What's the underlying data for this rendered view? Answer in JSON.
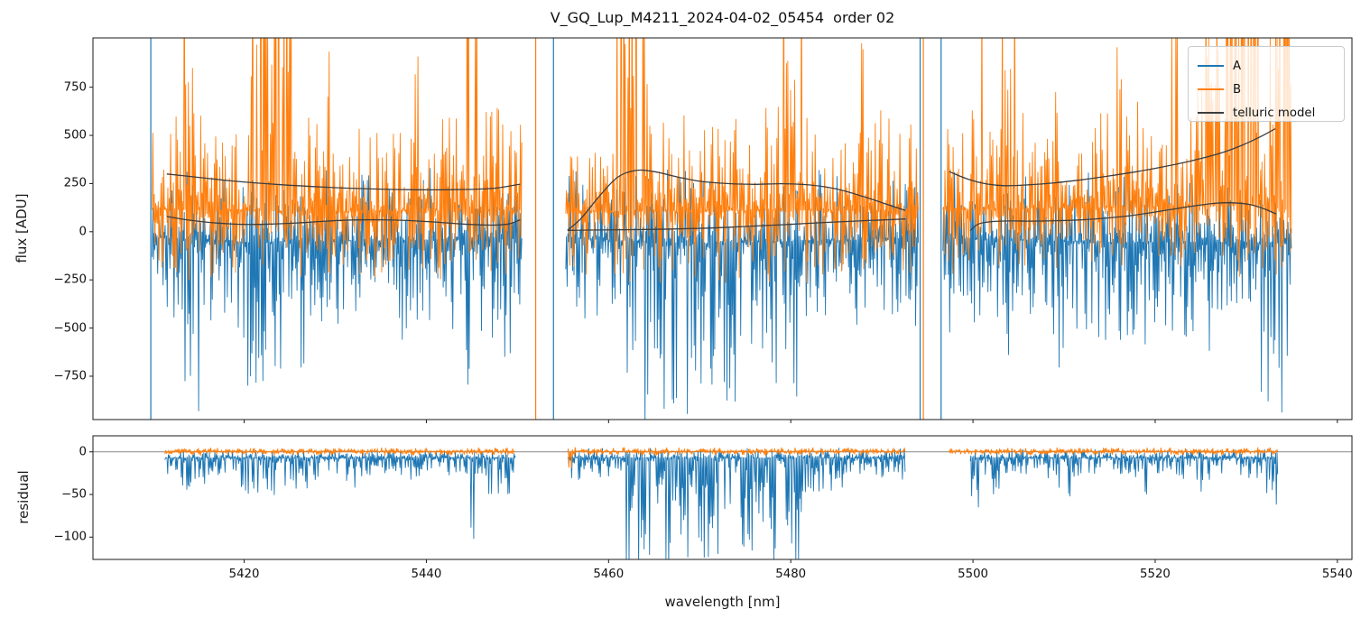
{
  "chart_data": {
    "type": "line",
    "title": "V_GQ_Lup_M4211_2024-04-02_05454  order 02",
    "panels": {
      "flux": {
        "ylabel": "flux [ADU]",
        "ylim": [
          -975,
          1006
        ],
        "yticks": [
          750,
          500,
          250,
          0,
          -250,
          -500,
          -750
        ],
        "xlim": [
          5403.4,
          5541.6
        ],
        "xticks": [
          5420,
          5440,
          5460,
          5480,
          5500,
          5520,
          5540
        ],
        "show_xticklabels": false
      },
      "residual": {
        "ylabel": "residual",
        "xlabel": "wavelength [nm]",
        "ylim": [
          -126.2,
          18.8
        ],
        "yticks": [
          0,
          -50,
          -100
        ],
        "xlim": [
          5403.4,
          5541.6
        ],
        "xticks": [
          5420,
          5440,
          5460,
          5480,
          5500,
          5520,
          5540
        ],
        "zero_line": true
      }
    },
    "legend": {
      "position": "upper right",
      "entries": [
        {
          "label": "A",
          "color": "#1f77b4"
        },
        {
          "label": "B",
          "color": "#ff7f0e"
        },
        {
          "label": "telluric model",
          "color": "#3d3d3d"
        }
      ]
    },
    "colors": {
      "A": "#1f77b4",
      "B": "#ff7f0e",
      "telluric": "#3d3d3d",
      "zero_line": "#888888",
      "spine": "#1a1a1a"
    },
    "segments": [
      {
        "x0": 5409.9,
        "x1": 5450.5
      },
      {
        "x0": 5455.3,
        "x1": 5494.0
      },
      {
        "x0": 5496.7,
        "x1": 5535.0
      }
    ],
    "telluric_model": {
      "upper": [
        [
          [
            5411.5,
            300
          ],
          [
            5415,
            282
          ],
          [
            5419,
            262
          ],
          [
            5424,
            244
          ],
          [
            5429,
            231
          ],
          [
            5434,
            222
          ],
          [
            5439,
            218
          ],
          [
            5444,
            219
          ],
          [
            5447.5,
            226
          ],
          [
            5450.3,
            247
          ]
        ],
        [
          [
            5455.5,
            8
          ],
          [
            5457,
            70
          ],
          [
            5459,
            185
          ],
          [
            5461,
            283
          ],
          [
            5463,
            318
          ],
          [
            5465,
            312
          ],
          [
            5467.5,
            285
          ],
          [
            5470,
            262
          ],
          [
            5473,
            250
          ],
          [
            5476,
            246
          ],
          [
            5479,
            249
          ],
          [
            5482,
            243
          ],
          [
            5485,
            222
          ],
          [
            5488,
            182
          ],
          [
            5490.5,
            143
          ],
          [
            5492.6,
            110
          ]
        ],
        [
          [
            5497.4,
            312
          ],
          [
            5499.5,
            272
          ],
          [
            5501.5,
            248
          ],
          [
            5503.5,
            239
          ],
          [
            5506,
            243
          ],
          [
            5509,
            254
          ],
          [
            5512,
            270
          ],
          [
            5515,
            290
          ],
          [
            5518,
            312
          ],
          [
            5521,
            338
          ],
          [
            5524,
            368
          ],
          [
            5527,
            405
          ],
          [
            5529.5,
            448
          ],
          [
            5531.5,
            492
          ],
          [
            5533.2,
            535
          ]
        ]
      ],
      "lower": [
        [
          [
            5411.5,
            79
          ],
          [
            5414,
            60
          ],
          [
            5417,
            45
          ],
          [
            5420,
            38
          ],
          [
            5423,
            40
          ],
          [
            5426,
            46
          ],
          [
            5429,
            55
          ],
          [
            5432,
            61
          ],
          [
            5435,
            62
          ],
          [
            5438,
            58
          ],
          [
            5441,
            50
          ],
          [
            5444,
            40
          ],
          [
            5447,
            34
          ],
          [
            5449,
            40
          ],
          [
            5450.3,
            62
          ]
        ],
        [
          [
            5455.5,
            7
          ],
          [
            5459,
            9
          ],
          [
            5463,
            11
          ],
          [
            5467,
            14
          ],
          [
            5471,
            19
          ],
          [
            5475,
            27
          ],
          [
            5479,
            36
          ],
          [
            5483,
            46
          ],
          [
            5487,
            55
          ],
          [
            5490,
            61
          ],
          [
            5492.6,
            66
          ]
        ],
        [
          [
            5499.7,
            6
          ],
          [
            5500.6,
            40
          ],
          [
            5502,
            52
          ],
          [
            5504,
            56
          ],
          [
            5506,
            55
          ],
          [
            5509,
            57
          ],
          [
            5512,
            62
          ],
          [
            5515,
            72
          ],
          [
            5518,
            88
          ],
          [
            5521,
            110
          ],
          [
            5524,
            132
          ],
          [
            5526.5,
            147
          ],
          [
            5528.5,
            150
          ],
          [
            5530.5,
            140
          ],
          [
            5532,
            118
          ],
          [
            5533.3,
            92
          ]
        ]
      ]
    },
    "flux_series": [
      {
        "name": "A",
        "color": "#1f77b4",
        "segments": [
          {
            "x0": 5409.9,
            "x1": 5450.5,
            "center": [
              [
                5409.9,
                -30
              ],
              [
                5420,
                -55
              ],
              [
                5435,
                -45
              ],
              [
                5450.5,
                -35
              ]
            ],
            "up": 380,
            "down": 520,
            "deep": [
              [
                5413.2,
                5415.6,
                900
              ],
              [
                5419.5,
                5424.6,
                780
              ],
              [
                5426,
                5428.2,
                660
              ],
              [
                5430,
                5431.2,
                560
              ],
              [
                5436.5,
                5437.5,
                520
              ],
              [
                5444.3,
                5445.4,
                920
              ],
              [
                5447,
                5449.3,
                640
              ]
            ]
          },
          {
            "x0": 5455.3,
            "x1": 5494.0,
            "center": [
              [
                5455.3,
                -35
              ],
              [
                5470,
                -60
              ],
              [
                5485,
                -45
              ],
              [
                5494,
                -30
              ]
            ],
            "up": 380,
            "down": 520,
            "deep": [
              [
                5457.9,
                5458.7,
                450
              ],
              [
                5462,
                5470.6,
                950
              ],
              [
                5470.6,
                5478.4,
                840
              ],
              [
                5479.4,
                5482.2,
                910
              ],
              [
                5486.8,
                5488.2,
                520
              ]
            ]
          },
          {
            "x0": 5496.7,
            "x1": 5535.0,
            "center": [
              [
                5496.7,
                -30
              ],
              [
                5515,
                -55
              ],
              [
                5535,
                -55
              ]
            ],
            "up": 380,
            "down": 540,
            "deep": [
              [
                5499.8,
                5500.5,
                950
              ],
              [
                5502.8,
                5504,
                660
              ],
              [
                5508.5,
                5510,
                860
              ],
              [
                5512,
                5513.2,
                600
              ],
              [
                5517.5,
                5519,
                660
              ],
              [
                5524.8,
                5526.4,
                830
              ],
              [
                5530.9,
                5534.7,
                930
              ]
            ]
          }
        ]
      },
      {
        "name": "B",
        "color": "#ff7f0e",
        "segments": [
          {
            "x0": 5409.9,
            "x1": 5450.5,
            "center": [
              [
                5409.9,
                115
              ],
              [
                5430,
                105
              ],
              [
                5450.5,
                115
              ]
            ],
            "up": 560,
            "down": 380,
            "burst": [
              [
                5413.3,
                5414.4,
                1700
              ],
              [
                5420.5,
                5425.4,
                2600
              ],
              [
                5428.8,
                5429.6,
                1000
              ],
              [
                5438.5,
                5439.2,
                900
              ],
              [
                5444.2,
                5445.7,
                1800
              ]
            ]
          },
          {
            "x0": 5455.3,
            "x1": 5494.0,
            "center": [
              [
                5455.3,
                105
              ],
              [
                5494,
                115
              ]
            ],
            "up": 560,
            "down": 380,
            "burst": [
              [
                5460.8,
                5464.3,
                2200
              ],
              [
                5468,
                5468.7,
                950
              ],
              [
                5478.9,
                5481.4,
                2000
              ],
              [
                5487.4,
                5488.3,
                1100
              ]
            ]
          },
          {
            "x0": 5496.7,
            "x1": 5535.0,
            "center": [
              [
                5496.7,
                115
              ],
              [
                5535,
                140
              ]
            ],
            "up": 580,
            "down": 380,
            "burst": [
              [
                5500.2,
                5501.1,
                1400
              ],
              [
                5503,
                5504.7,
                1600
              ],
              [
                5508.3,
                5509.1,
                1000
              ],
              [
                5515.8,
                5516.7,
                1000
              ],
              [
                5521.7,
                5522.6,
                1200
              ],
              [
                5524.4,
                5527.4,
                1800
              ],
              [
                5527.4,
                5535,
                3200
              ]
            ]
          }
        ]
      }
    ],
    "residual_series": [
      {
        "name": "A",
        "color": "#1f77b4",
        "segments": [
          {
            "x0": 5411.3,
            "x1": 5449.8,
            "center": -7,
            "up": 10,
            "down": 28,
            "deep": [
              [
                5413,
                5416,
                40
              ],
              [
                5419.5,
                5427,
                45
              ],
              [
                5429.5,
                5433,
                38
              ],
              [
                5436.8,
                5438.6,
                32
              ],
              [
                5444.3,
                5445.3,
                98
              ],
              [
                5446.8,
                5449.5,
                48
              ]
            ]
          },
          {
            "x0": 5455.5,
            "x1": 5492.6,
            "center": -7,
            "up": 12,
            "down": 30,
            "deep": [
              [
                5457.8,
                5459.1,
                42
              ],
              [
                5461.5,
                5470.8,
                135
              ],
              [
                5470.8,
                5478.5,
                120
              ],
              [
                5479.3,
                5482.1,
                130
              ],
              [
                5482.1,
                5487,
                45
              ]
            ]
          },
          {
            "x0": 5499.7,
            "x1": 5533.5,
            "center": -7,
            "up": 11,
            "down": 28,
            "deep": [
              [
                5499.75,
                5500.6,
                135
              ],
              [
                5502,
                5503.1,
                55
              ],
              [
                5509.3,
                5511,
                48
              ],
              [
                5517.8,
                5519.1,
                50
              ],
              [
                5524.9,
                5527,
                42
              ],
              [
                5532.2,
                5533.4,
                60
              ]
            ]
          }
        ]
      },
      {
        "name": "B",
        "color": "#ff7f0e",
        "segments": [
          {
            "x0": 5411.3,
            "x1": 5449.8,
            "center": 0.5,
            "up": 5,
            "down": 5,
            "deep": []
          },
          {
            "x0": 5455.5,
            "x1": 5492.6,
            "center": 0.5,
            "up": 5,
            "down": 5,
            "deep": [
              [
                5455.55,
                5456,
                95
              ]
            ]
          },
          {
            "x0": 5497.3,
            "x1": 5533.5,
            "center": 0.5,
            "up": 5,
            "down": 5,
            "deep": [
              [
                5499.85,
                5500.25,
                20
              ]
            ]
          }
        ]
      }
    ],
    "edge_lines": [
      {
        "x": 5409.75,
        "series": "A"
      },
      {
        "x": 5452.0,
        "series": "B"
      },
      {
        "x": 5453.95,
        "series": "A"
      },
      {
        "x": 5494.2,
        "series": "A"
      },
      {
        "x": 5494.55,
        "series": "B"
      },
      {
        "x": 5496.5,
        "series": "A"
      }
    ]
  }
}
